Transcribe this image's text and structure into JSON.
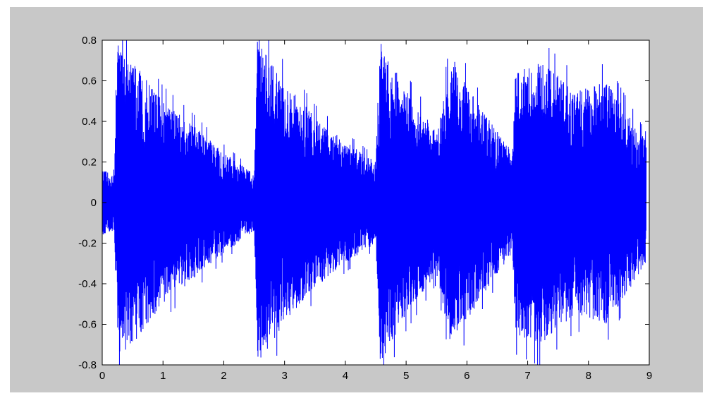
{
  "chart_data": {
    "type": "line",
    "title": "",
    "xlabel": "",
    "ylabel": "",
    "xlim": [
      0,
      9
    ],
    "ylim": [
      -0.8,
      0.8
    ],
    "grid": false,
    "legend": "none",
    "x_ticks": [
      0,
      1,
      2,
      3,
      4,
      5,
      6,
      7,
      8,
      9
    ],
    "x_tick_labels": [
      "0",
      "1",
      "2",
      "3",
      "4",
      "5",
      "6",
      "7",
      "8",
      "9"
    ],
    "y_ticks": [
      0.8,
      0.6,
      0.4,
      0.2,
      0,
      -0.2,
      -0.4,
      -0.6,
      -0.8
    ],
    "y_tick_labels": [
      "0.8",
      "0.6",
      "0.4",
      "0.2",
      "0",
      "-0.2",
      "-0.4",
      "-0.6",
      "-0.8"
    ],
    "series": [
      {
        "color": "#0000ff",
        "x_range": [
          0,
          8.95
        ],
        "envelope_points": [
          {
            "x": 0.0,
            "amp": 0.16
          },
          {
            "x": 0.2,
            "amp": 0.14
          },
          {
            "x": 0.25,
            "amp": 0.78
          },
          {
            "x": 0.5,
            "amp": 0.7
          },
          {
            "x": 1.0,
            "amp": 0.5
          },
          {
            "x": 1.5,
            "amp": 0.38
          },
          {
            "x": 2.0,
            "amp": 0.25
          },
          {
            "x": 2.5,
            "amp": 0.14
          },
          {
            "x": 2.55,
            "amp": 0.8
          },
          {
            "x": 3.0,
            "amp": 0.6
          },
          {
            "x": 3.5,
            "amp": 0.42
          },
          {
            "x": 4.0,
            "amp": 0.3
          },
          {
            "x": 4.5,
            "amp": 0.2
          },
          {
            "x": 4.57,
            "amp": 0.8
          },
          {
            "x": 5.0,
            "amp": 0.55
          },
          {
            "x": 5.5,
            "amp": 0.35
          },
          {
            "x": 5.75,
            "amp": 0.72
          },
          {
            "x": 6.2,
            "amp": 0.48
          },
          {
            "x": 6.75,
            "amp": 0.25
          },
          {
            "x": 6.8,
            "amp": 0.65
          },
          {
            "x": 7.2,
            "amp": 0.7
          },
          {
            "x": 7.8,
            "amp": 0.55
          },
          {
            "x": 8.3,
            "amp": 0.6
          },
          {
            "x": 8.95,
            "amp": 0.3
          }
        ]
      }
    ],
    "colors": {
      "figure_background": "#c8c8c8",
      "axes_background": "#ffffff",
      "axis_line": "#000000",
      "line": "#0000ff"
    }
  }
}
